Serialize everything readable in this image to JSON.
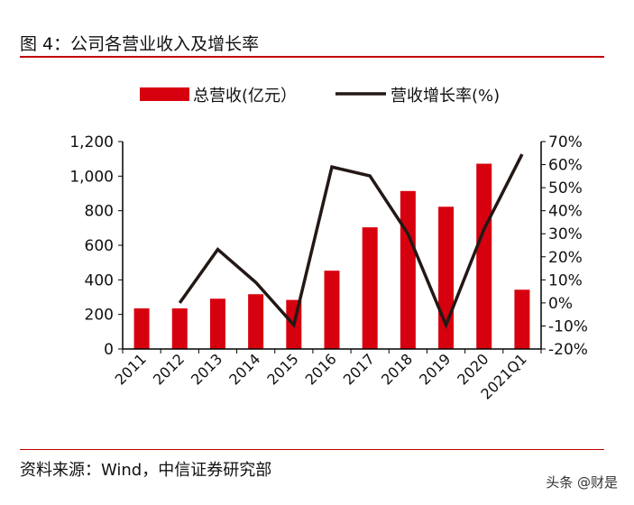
{
  "title": "图 4：公司各营业收入及增长率",
  "source": "资料来源：Wind，中信证券研究部",
  "watermark": "头条 @财是",
  "chart_data": {
    "type": "bar+line",
    "categories": [
      "2011",
      "2012",
      "2013",
      "2014",
      "2015",
      "2016",
      "2017",
      "2018",
      "2019",
      "2020",
      "2021Q1"
    ],
    "series": [
      {
        "name": "总营收(亿元）",
        "type": "bar",
        "axis": "left",
        "color": "#d7000f",
        "values": [
          235,
          235,
          291,
          317,
          284,
          453,
          704,
          914,
          823,
          1072,
          343
        ]
      },
      {
        "name": "营收增长率(%)",
        "type": "line",
        "axis": "right",
        "color": "#231815",
        "values": [
          null,
          0,
          23.2,
          8.9,
          -9.6,
          59,
          55.1,
          30,
          -9.6,
          32,
          64.5
        ]
      }
    ],
    "left_axis": {
      "ylim": [
        0,
        1200
      ],
      "ticks": [
        "0",
        "200",
        "400",
        "600",
        "800",
        "1,000",
        "1,200"
      ]
    },
    "right_axis": {
      "ylim": [
        -20,
        70
      ],
      "ticks": [
        "-20%",
        "-10%",
        "0%",
        "10%",
        "20%",
        "30%",
        "40%",
        "50%",
        "60%",
        "70%"
      ]
    },
    "legend": "top-center",
    "grid": false
  }
}
